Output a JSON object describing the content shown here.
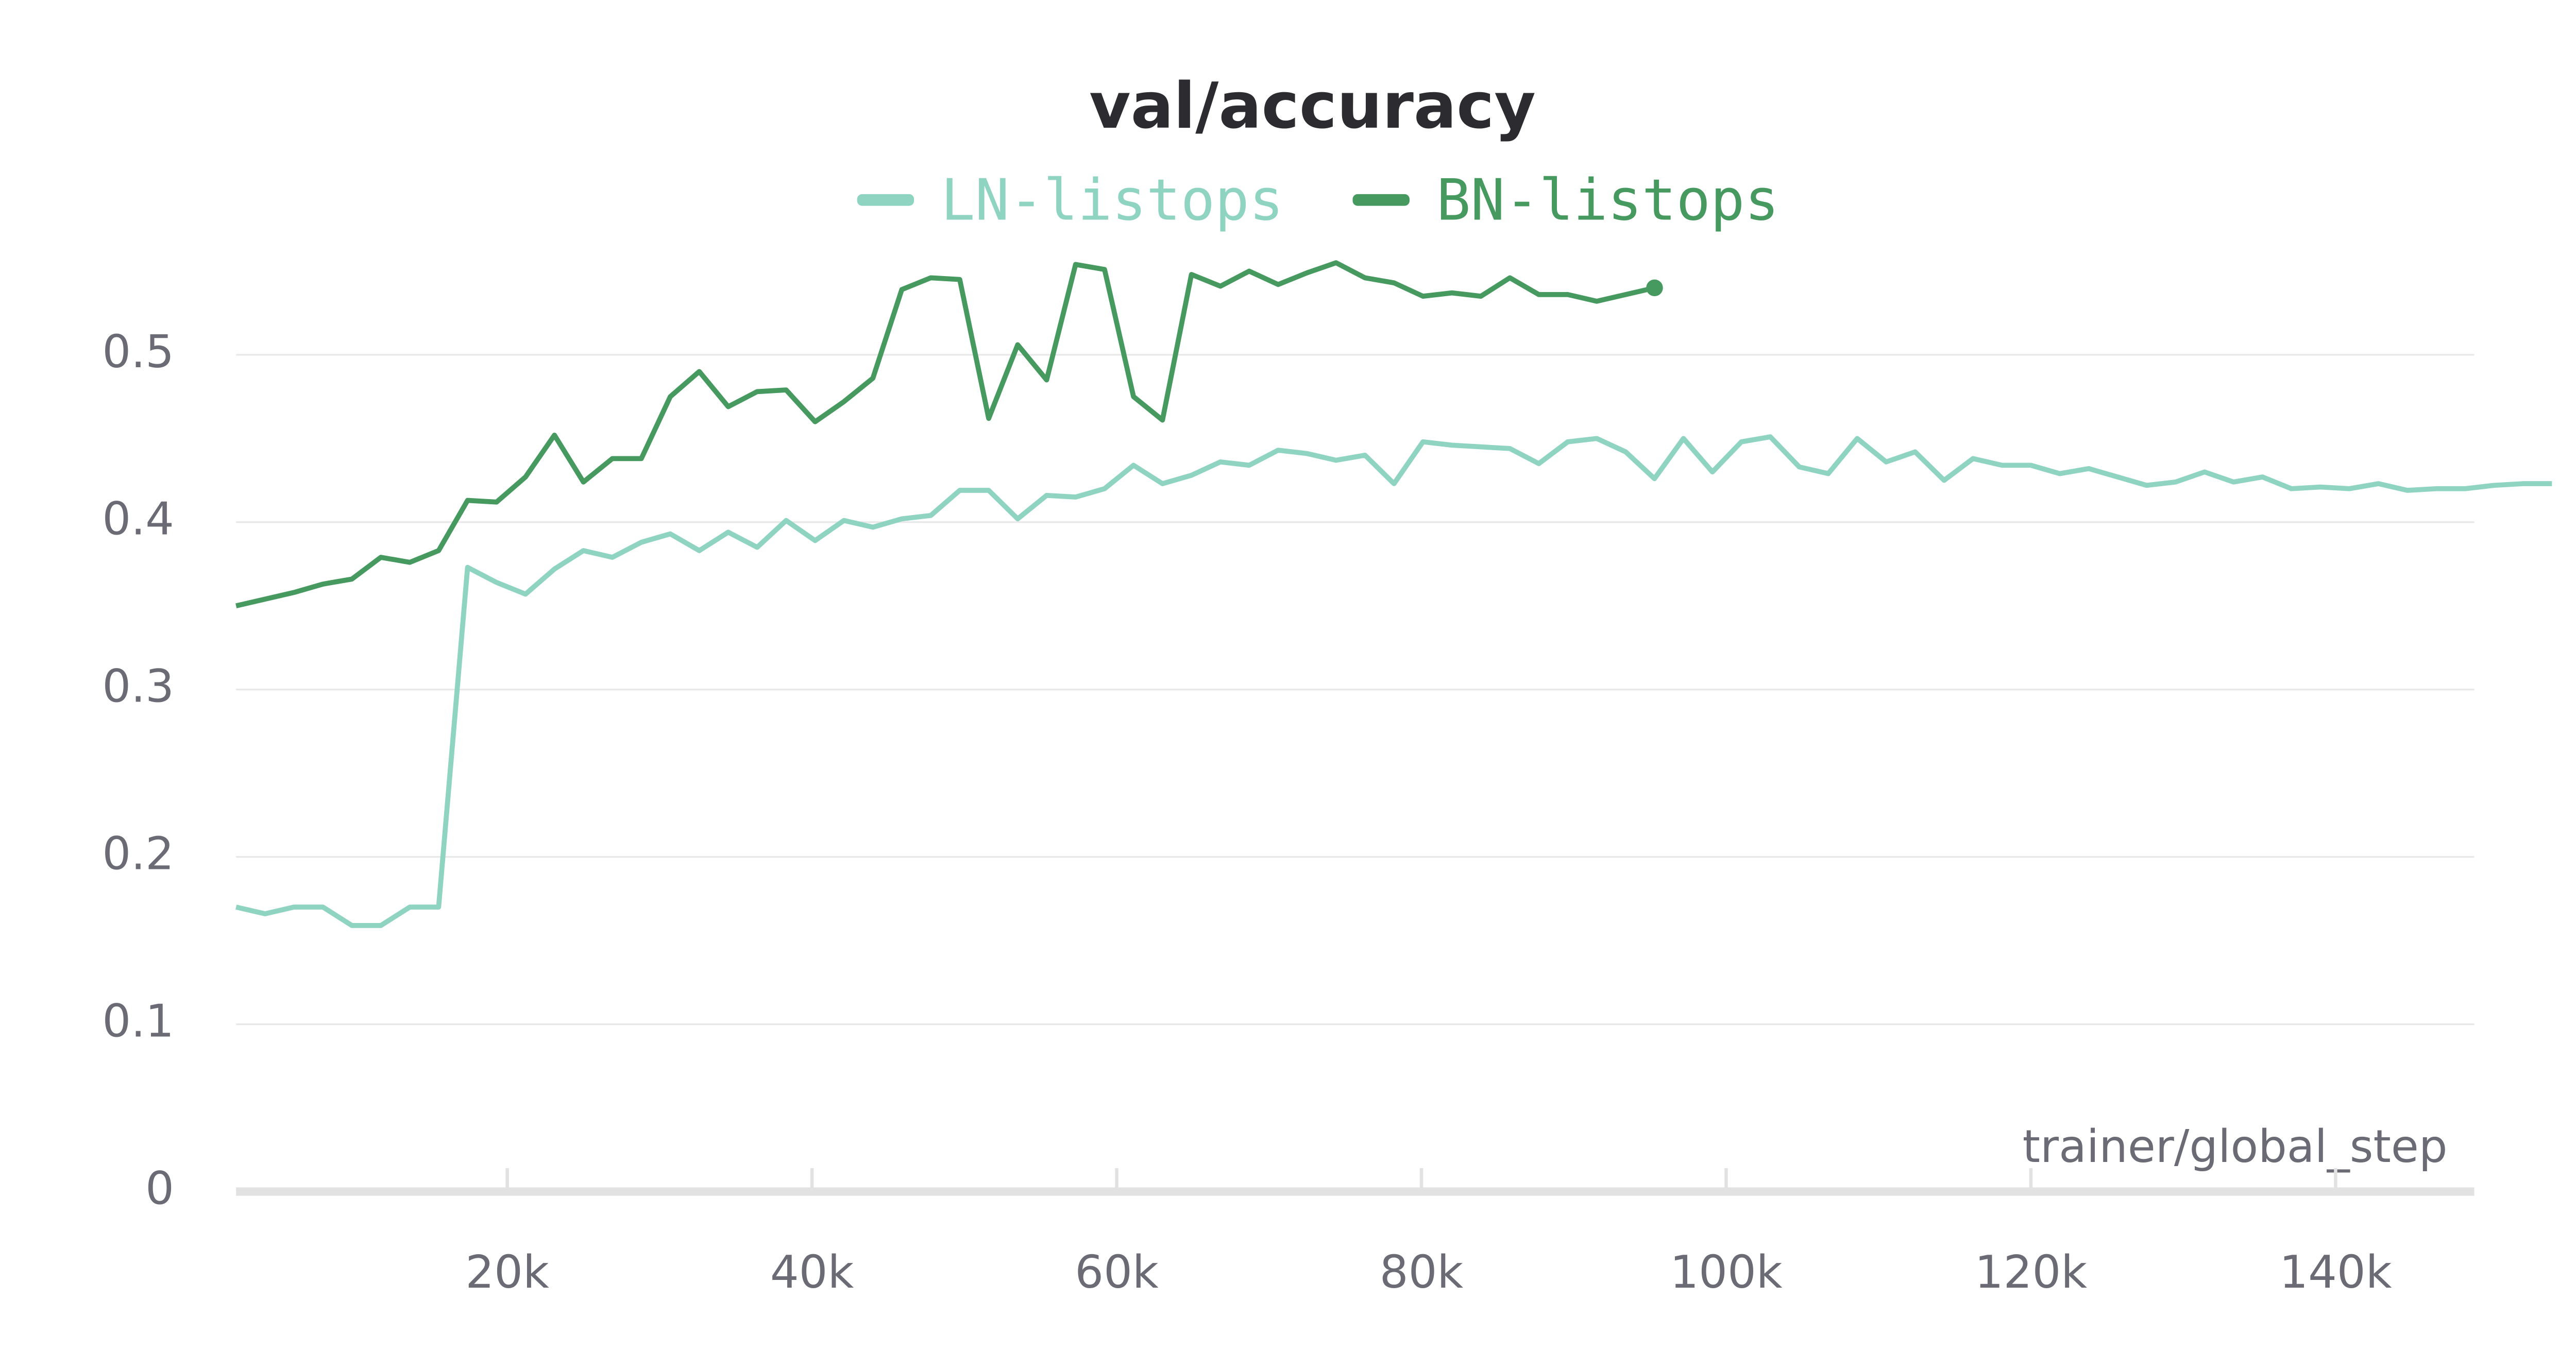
{
  "chart_data": {
    "type": "line",
    "title": "val/accuracy",
    "x_label": "trainer/global_step",
    "x": [
      2200,
      4100,
      6000,
      7900,
      9800,
      11700,
      13600,
      15500,
      17400,
      19300,
      21200,
      23100,
      25000,
      26900,
      28800,
      30700,
      32600,
      34500,
      36400,
      38300,
      40200,
      42100,
      44000,
      45900,
      47800,
      49700,
      51600,
      53500,
      55400,
      57300,
      59200,
      61100,
      63000,
      64900,
      66800,
      68700,
      70600,
      72500,
      74400,
      76300,
      78200,
      80100,
      82000,
      83900,
      85800,
      87700,
      89600,
      91500,
      93400,
      95300,
      97200,
      99100,
      101000,
      102900,
      104800,
      106700,
      108600,
      110500,
      112400,
      114300,
      116200,
      118100,
      120000,
      121900,
      123800,
      125700,
      127600,
      129500,
      131400,
      133300,
      135200,
      137100,
      139000,
      140900,
      142800,
      144700,
      146600,
      148500,
      150400,
      152300,
      154200
    ],
    "series": [
      {
        "name": "LN-listops",
        "color": "#8fd3c1",
        "values": [
          0.17,
          0.166,
          0.17,
          0.17,
          0.159,
          0.159,
          0.17,
          0.17,
          0.373,
          0.364,
          0.357,
          0.372,
          0.383,
          0.379,
          0.388,
          0.393,
          0.383,
          0.394,
          0.385,
          0.401,
          0.389,
          0.401,
          0.397,
          0.402,
          0.404,
          0.419,
          0.419,
          0.402,
          0.416,
          0.415,
          0.42,
          0.434,
          0.423,
          0.428,
          0.436,
          0.434,
          0.443,
          0.441,
          0.437,
          0.44,
          0.423,
          0.448,
          0.446,
          0.445,
          0.444,
          0.435,
          0.448,
          0.45,
          0.442,
          0.426,
          0.45,
          0.43,
          0.448,
          0.451,
          0.433,
          0.429,
          0.45,
          0.436,
          0.442,
          0.425,
          0.438,
          0.434,
          0.434,
          0.429,
          0.432,
          0.427,
          0.422,
          0.424,
          0.43,
          0.424,
          0.427,
          0.42,
          0.421,
          0.42,
          0.423,
          0.419,
          0.42,
          0.42,
          0.422,
          0.423,
          0.423
        ]
      },
      {
        "name": "BN-listops",
        "color": "#479a5f",
        "values": [
          0.35,
          0.354,
          0.358,
          0.363,
          0.366,
          0.379,
          0.376,
          0.383,
          0.413,
          0.412,
          0.427,
          0.452,
          0.424,
          0.438,
          0.438,
          0.475,
          0.49,
          0.469,
          0.478,
          0.479,
          0.46,
          0.472,
          0.486,
          0.539,
          0.546,
          0.545,
          0.462,
          0.506,
          0.485,
          0.554,
          0.551,
          0.475,
          0.461,
          0.548,
          0.541,
          0.55,
          0.542,
          0.549,
          0.555,
          0.546,
          0.543,
          0.535,
          0.537,
          0.535,
          0.546,
          0.536,
          0.536,
          0.532,
          0.536,
          0.54,
          null,
          null,
          null,
          null,
          null,
          null,
          null,
          null,
          null,
          null,
          null,
          null,
          null,
          null,
          null,
          null,
          null,
          null,
          null,
          null,
          null,
          null,
          null,
          null,
          null,
          null,
          null,
          null,
          null,
          null,
          null
        ]
      }
    ],
    "xlim": [
      2200,
      149100
    ],
    "ylim": [
      0,
      0.58
    ],
    "xticks": [
      {
        "value": 20000,
        "label": "20k"
      },
      {
        "value": 40000,
        "label": "40k"
      },
      {
        "value": 60000,
        "label": "60k"
      },
      {
        "value": 80000,
        "label": "80k"
      },
      {
        "value": 100000,
        "label": "100k"
      },
      {
        "value": 120000,
        "label": "120k"
      },
      {
        "value": 140000,
        "label": "140k"
      }
    ],
    "yticks": [
      0,
      0.1,
      0.2,
      0.3,
      0.4,
      0.5
    ],
    "grid": true
  }
}
